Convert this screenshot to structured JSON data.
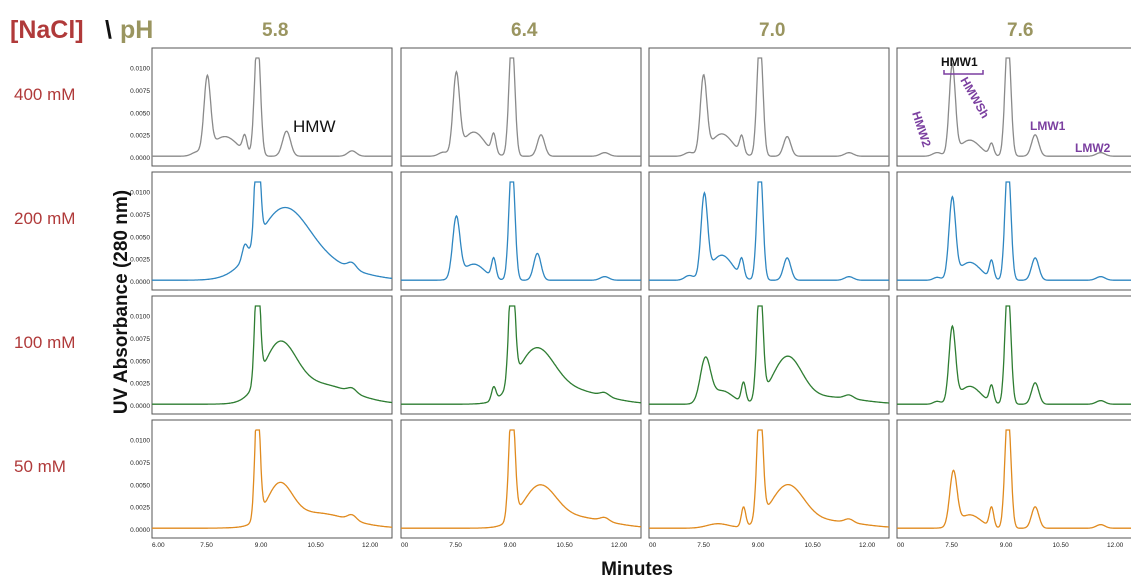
{
  "header": {
    "nacl_label": "[NaCl]",
    "separator": "\\",
    "ph_label": "pH"
  },
  "colors": {
    "nacl": "#b03a3a",
    "ph": "#9a9560",
    "series": {
      "400 mM": "#8a8a8a",
      "200 mM": "#2e86c1",
      "100 mM": "#2e7d32",
      "50 mM": "#e08a1e"
    },
    "annotation": "#7b3fa0"
  },
  "x_axis_title": "Minutes",
  "y_axis_title": "UV Absorbance (280 nm)",
  "annotations": {
    "hmw": "HMW",
    "hmw1": "HMW1",
    "hmw2": "HMW2",
    "hmwsh": "HMWSh",
    "lmw1": "LMW1",
    "lmw2": "LMW2"
  },
  "chart_data": {
    "type": "line",
    "layout": "grid of chromatograms (rows = [NaCl], columns = pH)",
    "rows": [
      "400 mM",
      "200 mM",
      "100 mM",
      "50 mM"
    ],
    "columns": [
      "5.8",
      "6.4",
      "7.0",
      "7.6"
    ],
    "xlim": [
      6.0,
      12.6
    ],
    "ylim": [
      0,
      0.0112
    ],
    "y_ticks": [
      "0.0100",
      "0.0075",
      "0.0050",
      "0.0025",
      "0.0000"
    ],
    "x_ticks_by_column": [
      [
        "6.00",
        "7.50",
        "9.00",
        "10.50",
        "12.00"
      ],
      [
        "00",
        "7.50",
        "9.00",
        "10.50",
        "12.00"
      ],
      [
        "00",
        "7.50",
        "9.00",
        "10.50",
        "12.00"
      ],
      [
        "00",
        "7.50",
        "9.00",
        "10.50",
        "12.00"
      ]
    ],
    "baseline": 0.0002,
    "peaks": [
      [
        [
          [
            7.2,
            0.0003,
            0.12
          ],
          [
            7.52,
            0.0082,
            0.09
          ],
          [
            8.0,
            0.0022,
            0.35
          ],
          [
            8.55,
            0.0018,
            0.06
          ],
          [
            8.9,
            0.0135,
            0.08
          ],
          [
            9.7,
            0.0028,
            0.11
          ],
          [
            11.5,
            0.0006,
            0.12
          ]
        ],
        [
          [
            7.15,
            0.0004,
            0.12
          ],
          [
            7.52,
            0.0087,
            0.09
          ],
          [
            8.0,
            0.0027,
            0.3
          ],
          [
            8.55,
            0.0021,
            0.06
          ],
          [
            9.05,
            0.0135,
            0.08
          ],
          [
            9.85,
            0.0024,
            0.1
          ],
          [
            11.6,
            0.0004,
            0.12
          ]
        ],
        [
          [
            7.1,
            0.0004,
            0.12
          ],
          [
            7.5,
            0.0085,
            0.09
          ],
          [
            8.0,
            0.0025,
            0.3
          ],
          [
            8.55,
            0.0019,
            0.06
          ],
          [
            9.05,
            0.0135,
            0.08
          ],
          [
            9.8,
            0.0022,
            0.1
          ],
          [
            11.5,
            0.0004,
            0.12
          ]
        ],
        [
          [
            7.1,
            0.0004,
            0.12
          ],
          [
            7.52,
            0.0099,
            0.085
          ],
          [
            8.0,
            0.0018,
            0.28
          ],
          [
            8.6,
            0.0013,
            0.06
          ],
          [
            9.05,
            0.0135,
            0.08
          ],
          [
            9.8,
            0.0024,
            0.1
          ],
          [
            11.6,
            0.0004,
            0.12
          ]
        ]
      ],
      [
        [
          [
            8.55,
            0.0015,
            0.07
          ],
          [
            8.9,
            0.0135,
            0.07
          ],
          [
            9.6,
            0.0075,
            0.7
          ],
          [
            10.8,
            0.0015,
            0.9
          ],
          [
            11.5,
            0.0007,
            0.12
          ]
        ],
        [
          [
            7.52,
            0.0067,
            0.1
          ],
          [
            8.0,
            0.0018,
            0.3
          ],
          [
            8.55,
            0.0022,
            0.06
          ],
          [
            9.05,
            0.0135,
            0.08
          ],
          [
            9.75,
            0.003,
            0.1
          ],
          [
            11.6,
            0.0004,
            0.12
          ]
        ],
        [
          [
            7.1,
            0.0005,
            0.12
          ],
          [
            7.52,
            0.009,
            0.09
          ],
          [
            8.0,
            0.0028,
            0.3
          ],
          [
            8.55,
            0.002,
            0.06
          ],
          [
            9.05,
            0.0135,
            0.08
          ],
          [
            9.8,
            0.0025,
            0.1
          ],
          [
            11.5,
            0.0004,
            0.12
          ]
        ],
        [
          [
            7.1,
            0.0003,
            0.1
          ],
          [
            7.52,
            0.0088,
            0.09
          ],
          [
            8.0,
            0.002,
            0.3
          ],
          [
            8.6,
            0.002,
            0.06
          ],
          [
            9.05,
            0.0135,
            0.08
          ],
          [
            9.8,
            0.0025,
            0.1
          ],
          [
            11.6,
            0.0004,
            0.12
          ]
        ]
      ],
      [
        [
          [
            8.9,
            0.0135,
            0.07
          ],
          [
            9.5,
            0.006,
            0.45
          ],
          [
            10.6,
            0.0022,
            0.9
          ],
          [
            11.5,
            0.0005,
            0.12
          ]
        ],
        [
          [
            8.55,
            0.0015,
            0.06
          ],
          [
            9.05,
            0.0135,
            0.08
          ],
          [
            9.7,
            0.0055,
            0.5
          ],
          [
            10.7,
            0.0015,
            0.9
          ],
          [
            11.6,
            0.0004,
            0.12
          ]
        ],
        [
          [
            7.55,
            0.0048,
            0.14
          ],
          [
            8.0,
            0.0015,
            0.3
          ],
          [
            8.6,
            0.0022,
            0.06
          ],
          [
            9.05,
            0.0135,
            0.08
          ],
          [
            9.8,
            0.005,
            0.4
          ],
          [
            10.9,
            0.0008,
            0.9
          ],
          [
            11.5,
            0.0004,
            0.12
          ]
        ],
        [
          [
            7.1,
            0.0003,
            0.1
          ],
          [
            7.52,
            0.0082,
            0.09
          ],
          [
            8.0,
            0.002,
            0.3
          ],
          [
            8.6,
            0.0019,
            0.06
          ],
          [
            9.05,
            0.0135,
            0.08
          ],
          [
            9.8,
            0.0024,
            0.1
          ],
          [
            11.6,
            0.0004,
            0.12
          ]
        ]
      ],
      [
        [
          [
            8.9,
            0.0135,
            0.07
          ],
          [
            9.5,
            0.0042,
            0.35
          ],
          [
            10.5,
            0.0017,
            0.9
          ],
          [
            11.5,
            0.0006,
            0.12
          ]
        ],
        [
          [
            9.05,
            0.0135,
            0.08
          ],
          [
            9.8,
            0.0042,
            0.45
          ],
          [
            10.8,
            0.0012,
            0.9
          ],
          [
            11.6,
            0.0004,
            0.12
          ]
        ],
        [
          [
            7.9,
            0.0005,
            0.3
          ],
          [
            8.6,
            0.0022,
            0.06
          ],
          [
            9.05,
            0.0135,
            0.08
          ],
          [
            9.8,
            0.0045,
            0.45
          ],
          [
            10.9,
            0.0008,
            0.9
          ],
          [
            11.5,
            0.0004,
            0.12
          ]
        ],
        [
          [
            7.55,
            0.006,
            0.1
          ],
          [
            8.0,
            0.0015,
            0.3
          ],
          [
            8.6,
            0.0022,
            0.06
          ],
          [
            9.05,
            0.0135,
            0.08
          ],
          [
            9.8,
            0.0024,
            0.1
          ],
          [
            11.6,
            0.0004,
            0.12
          ]
        ]
      ]
    ]
  }
}
